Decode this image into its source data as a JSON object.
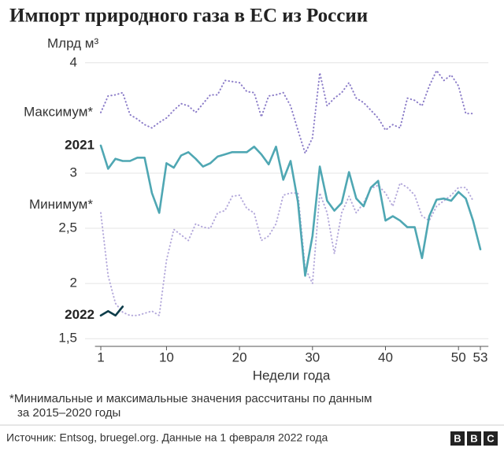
{
  "chart_data": {
    "type": "line",
    "title": "Импорт природного газа в ЕС из России",
    "y_label": "Млрд м³",
    "x_label": "Недели года",
    "x": [
      1,
      2,
      3,
      4,
      5,
      6,
      7,
      8,
      9,
      10,
      11,
      12,
      13,
      14,
      15,
      16,
      17,
      18,
      19,
      20,
      21,
      22,
      23,
      24,
      25,
      26,
      27,
      28,
      29,
      30,
      31,
      32,
      33,
      34,
      35,
      36,
      37,
      38,
      39,
      40,
      41,
      42,
      43,
      44,
      45,
      46,
      47,
      48,
      49,
      50,
      51,
      52,
      53
    ],
    "xlim": [
      0.2,
      54.1
    ],
    "xticks": [
      1,
      10,
      20,
      30,
      40,
      50,
      53
    ],
    "ylim": [
      1.43,
      4.07
    ],
    "yticks": [
      {
        "value": 1.5,
        "label": "1,5"
      },
      2,
      {
        "value": 2.5,
        "label": "2,5"
      },
      3,
      4
    ],
    "grid": true,
    "series": [
      {
        "name": "Минимум*",
        "color": "#b4a9db",
        "style": "dotted",
        "values": [
          2.64,
          2.07,
          1.82,
          1.74,
          1.71,
          1.71,
          1.73,
          1.75,
          1.71,
          2.21,
          2.49,
          2.44,
          2.39,
          2.54,
          2.51,
          2.5,
          2.64,
          2.66,
          2.79,
          2.8,
          2.68,
          2.64,
          2.39,
          2.43,
          2.54,
          2.8,
          2.82,
          2.82,
          2.14,
          2.0,
          2.82,
          2.64,
          2.27,
          2.64,
          2.79,
          2.64,
          2.73,
          2.86,
          2.89,
          2.82,
          2.7,
          2.91,
          2.87,
          2.8,
          2.61,
          2.57,
          2.7,
          2.75,
          2.8,
          2.87,
          2.87,
          2.75,
          null
        ]
      },
      {
        "name": "Максимум*",
        "color": "#8b7cc8",
        "style": "dotted",
        "values": [
          3.55,
          3.7,
          3.71,
          3.73,
          3.53,
          3.49,
          3.44,
          3.41,
          3.46,
          3.5,
          3.57,
          3.63,
          3.61,
          3.55,
          3.63,
          3.71,
          3.71,
          3.84,
          3.83,
          3.82,
          3.74,
          3.73,
          3.51,
          3.7,
          3.71,
          3.73,
          3.61,
          3.39,
          3.18,
          3.32,
          3.91,
          3.61,
          3.68,
          3.73,
          3.82,
          3.68,
          3.64,
          3.57,
          3.5,
          3.39,
          3.44,
          3.41,
          3.68,
          3.66,
          3.61,
          3.79,
          3.93,
          3.84,
          3.89,
          3.79,
          3.54,
          3.54,
          null
        ]
      },
      {
        "name": "2021",
        "color": "#4fa7b3",
        "style": "solid",
        "values": [
          3.25,
          3.04,
          3.13,
          3.11,
          3.11,
          3.14,
          3.14,
          2.82,
          2.64,
          3.09,
          3.05,
          3.16,
          3.19,
          3.13,
          3.06,
          3.09,
          3.15,
          3.17,
          3.19,
          3.19,
          3.19,
          3.24,
          3.17,
          3.08,
          3.24,
          2.94,
          3.11,
          2.74,
          2.07,
          2.43,
          3.06,
          2.75,
          2.66,
          2.73,
          3.01,
          2.77,
          2.7,
          2.87,
          2.93,
          2.57,
          2.61,
          2.57,
          2.51,
          2.51,
          2.23,
          2.61,
          2.76,
          2.77,
          2.75,
          2.83,
          2.77,
          2.57,
          2.31
        ]
      },
      {
        "name": "2022",
        "color": "#0e3d4a",
        "style": "solid",
        "values": [
          1.71,
          1.75,
          1.71,
          1.79,
          null,
          null,
          null,
          null,
          null,
          null,
          null,
          null,
          null,
          null,
          null,
          null,
          null,
          null,
          null,
          null,
          null,
          null,
          null,
          null,
          null,
          null,
          null,
          null,
          null,
          null,
          null,
          null,
          null,
          null,
          null,
          null,
          null,
          null,
          null,
          null,
          null,
          null,
          null,
          null,
          null,
          null,
          null,
          null,
          null,
          null,
          null,
          null,
          null
        ]
      }
    ],
    "footnote": [
      "*Минимальные и максимальные значения рассчитаны по данным",
      "за 2015–2020 годы"
    ],
    "source": "Источник: Entsog, bruegel.org. Данные на 1 февраля 2022 года",
    "logo": [
      "B",
      "B",
      "C"
    ]
  }
}
